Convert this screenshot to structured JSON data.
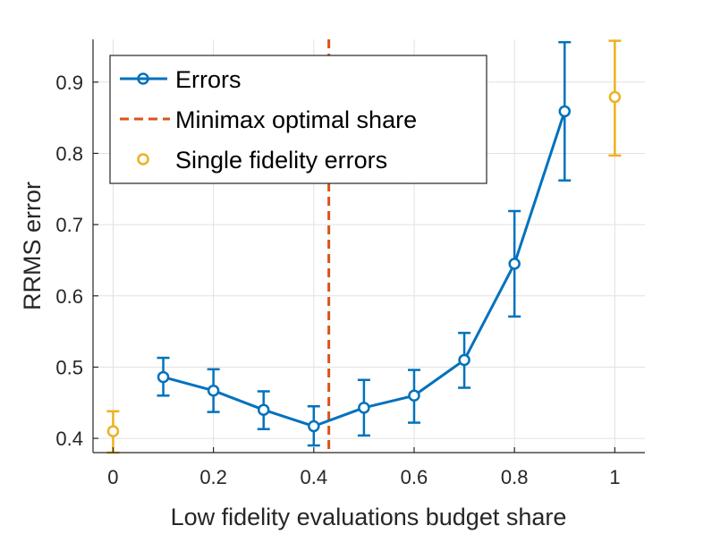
{
  "chart_data": {
    "type": "line",
    "title": "",
    "xlabel": "Low fidelity evaluations budget share",
    "ylabel": "RRMS error",
    "xlim": [
      -0.04,
      1.06
    ],
    "ylim": [
      0.38,
      0.96
    ],
    "grid": true,
    "xticks": [
      0,
      0.2,
      0.4,
      0.6,
      0.8,
      1
    ],
    "xtick_labels": [
      "0",
      "0.2",
      "0.4",
      "0.6",
      "0.8",
      "1"
    ],
    "yticks": [
      0.4,
      0.5,
      0.6,
      0.7,
      0.8,
      0.9
    ],
    "ytick_labels": [
      "0.4",
      "0.5",
      "0.6",
      "0.7",
      "0.8",
      "0.9"
    ],
    "legend_position": "top-left",
    "series": [
      {
        "name": "Errors",
        "style": "line-with-circle-markers",
        "color": "#0072BD",
        "x": [
          0.1,
          0.2,
          0.3,
          0.4,
          0.5,
          0.6,
          0.7,
          0.8,
          0.9
        ],
        "y": [
          0.486,
          0.467,
          0.44,
          0.417,
          0.443,
          0.46,
          0.51,
          0.645,
          0.859
        ],
        "err_low": [
          0.46,
          0.437,
          0.413,
          0.39,
          0.404,
          0.422,
          0.471,
          0.571,
          0.762
        ],
        "err_high": [
          0.513,
          0.497,
          0.466,
          0.445,
          0.482,
          0.496,
          0.548,
          0.719,
          0.956
        ]
      },
      {
        "name": "Minimax optimal share",
        "style": "dashed-vertical-line",
        "color": "#D95319",
        "x_value": 0.43
      },
      {
        "name": "Single fidelity errors",
        "style": "circle-markers",
        "color": "#EDB120",
        "x": [
          0,
          1
        ],
        "y": [
          0.41,
          0.879
        ],
        "err_low": [
          0.38,
          0.797
        ],
        "err_high": [
          0.438,
          0.958
        ]
      }
    ]
  }
}
